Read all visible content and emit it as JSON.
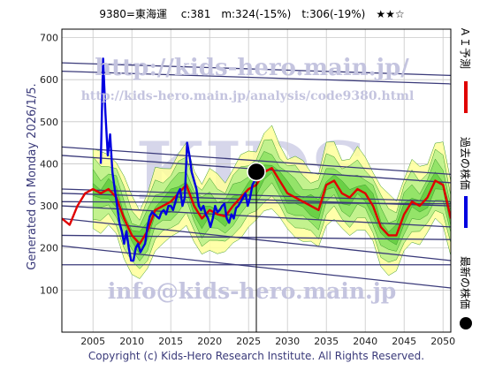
{
  "header": {
    "title": "9380=東海運　 c:381　m:324(-15%)　t:306(-19%)　★★☆"
  },
  "side_left": "Generated on Monday 2026/1/5.",
  "footer": "Copyright (c) Kids-Hero Research Institute. All Rights Reserved.",
  "watermarks": {
    "url1": "http://kids-hero.main.jp/",
    "url2": "http://kids-hero.main.jp/analysis/code9380.html",
    "big": "KIDS",
    "email": "info@kids-hero.main.jp"
  },
  "legend": [
    {
      "label": "ＡＩ予測",
      "color": "#e00000",
      "marker": "line"
    },
    {
      "label": "過去の株価",
      "color": "#0000e0",
      "marker": "line"
    },
    {
      "label": "最新の株価",
      "color": "#000000",
      "marker": "dot"
    }
  ],
  "chart_data": {
    "type": "line",
    "xlim": [
      2001,
      2051
    ],
    "ylim": [
      0,
      720
    ],
    "xticks": [
      2005,
      2010,
      2015,
      2020,
      2025,
      2030,
      2035,
      2040,
      2045,
      2050
    ],
    "yticks": [
      100,
      200,
      300,
      400,
      500,
      600,
      700
    ],
    "grid": true,
    "current_price": {
      "x": 2026.0,
      "y": 381
    },
    "channel_lines": [
      {
        "x": [
          2001,
          2051
        ],
        "y": [
          640,
          610
        ]
      },
      {
        "x": [
          2001,
          2051
        ],
        "y": [
          620,
          590
        ]
      },
      {
        "x": [
          2001,
          2051
        ],
        "y": [
          440,
          375
        ]
      },
      {
        "x": [
          2001,
          2051
        ],
        "y": [
          420,
          355
        ]
      },
      {
        "x": [
          2001,
          2051
        ],
        "y": [
          340,
          310
        ]
      },
      {
        "x": [
          2001,
          2051
        ],
        "y": [
          330,
          300
        ]
      },
      {
        "x": [
          2001,
          2051
        ],
        "y": [
          310,
          305
        ]
      },
      {
        "x": [
          2001,
          2051
        ],
        "y": [
          300,
          250
        ]
      },
      {
        "x": [
          2001,
          2051
        ],
        "y": [
          230,
          220
        ]
      },
      {
        "x": [
          2001,
          2051
        ],
        "y": [
          270,
          170
        ]
      },
      {
        "x": [
          2001,
          2051
        ],
        "y": [
          160,
          160
        ]
      },
      {
        "x": [
          2001,
          2051
        ],
        "y": [
          205,
          105
        ]
      }
    ],
    "series": [
      {
        "name": "過去の株価",
        "color": "#0000e0",
        "x": [
          2006.0,
          2006.3,
          2006.6,
          2006.9,
          2007.2,
          2007.5,
          2007.8,
          2008.1,
          2008.4,
          2008.7,
          2009.0,
          2009.3,
          2009.6,
          2009.9,
          2010.2,
          2010.5,
          2010.8,
          2011.1,
          2011.4,
          2011.7,
          2012.0,
          2012.3,
          2012.6,
          2012.9,
          2013.2,
          2013.5,
          2013.8,
          2014.1,
          2014.4,
          2014.7,
          2015.0,
          2015.3,
          2015.6,
          2015.9,
          2016.2,
          2016.5,
          2016.8,
          2017.1,
          2017.4,
          2017.7,
          2018.0,
          2018.3,
          2018.6,
          2018.9,
          2019.2,
          2019.5,
          2019.8,
          2020.1,
          2020.4,
          2020.7,
          2021.0,
          2021.3,
          2021.6,
          2021.9,
          2022.2,
          2022.5,
          2022.8,
          2023.1,
          2023.4,
          2023.7,
          2024.0,
          2024.3,
          2024.6,
          2024.9,
          2025.2,
          2025.5,
          2025.8
        ],
        "y": [
          400,
          650,
          520,
          420,
          470,
          380,
          340,
          300,
          260,
          240,
          210,
          240,
          200,
          170,
          170,
          200,
          210,
          190,
          200,
          210,
          250,
          275,
          285,
          280,
          275,
          270,
          285,
          290,
          280,
          300,
          300,
          290,
          310,
          330,
          340,
          300,
          320,
          450,
          420,
          380,
          360,
          340,
          300,
          290,
          300,
          280,
          270,
          250,
          270,
          300,
          285,
          290,
          300,
          305,
          270,
          260,
          280,
          270,
          295,
          300,
          310,
          320,
          330,
          300,
          320,
          350,
          360
        ]
      },
      {
        "name": "ＡＩ予測",
        "color": "#e00000",
        "x": [
          2001.0,
          2002.0,
          2003.0,
          2004.0,
          2005.0,
          2006.0,
          2007.0,
          2008.0,
          2009.0,
          2010.0,
          2011.0,
          2012.0,
          2013.0,
          2014.0,
          2015.0,
          2016.0,
          2017.0,
          2018.0,
          2019.0,
          2020.0,
          2021.0,
          2022.0,
          2023.0,
          2024.0,
          2025.0,
          2026.0,
          2027.0,
          2028.0,
          2029.0,
          2030.0,
          2031.0,
          2032.0,
          2033.0,
          2034.0,
          2035.0,
          2036.0,
          2037.0,
          2038.0,
          2039.0,
          2040.0,
          2041.0,
          2042.0,
          2043.0,
          2044.0,
          2045.0,
          2046.0,
          2047.0,
          2048.0,
          2049.0,
          2050.0,
          2051.0
        ],
        "y": [
          270,
          255,
          300,
          330,
          340,
          330,
          340,
          320,
          270,
          230,
          210,
          240,
          290,
          300,
          310,
          330,
          350,
          300,
          270,
          290,
          280,
          275,
          300,
          320,
          340,
          350,
          380,
          390,
          360,
          330,
          320,
          310,
          300,
          290,
          350,
          360,
          330,
          320,
          340,
          330,
          300,
          250,
          230,
          230,
          280,
          310,
          300,
          320,
          360,
          350,
          270
        ]
      }
    ]
  }
}
